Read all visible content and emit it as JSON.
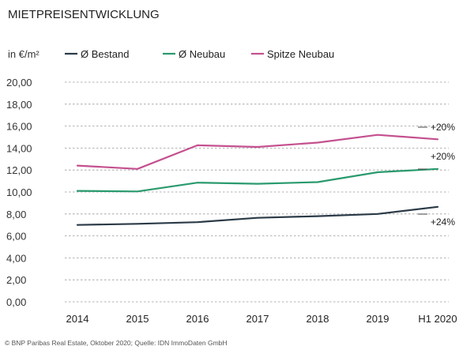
{
  "chart_data": {
    "type": "line",
    "title": "MIETPREISENTWICKLUNG",
    "ylabel": "in €/m²",
    "xlabel": "",
    "categories": [
      "2014",
      "2015",
      "2016",
      "2017",
      "2018",
      "2019",
      "H1 2020"
    ],
    "ylim": [
      0,
      20
    ],
    "yticks": [
      "0,00",
      "2,00",
      "4,00",
      "6,00",
      "8,00",
      "10,00",
      "12,00",
      "14,00",
      "16,00",
      "18,00",
      "20,00"
    ],
    "grid": "horizontal dashed",
    "legend_position": "top",
    "series": [
      {
        "name": "Ø Bestand",
        "color": "#2b3a47",
        "values": [
          7.0,
          7.1,
          7.25,
          7.65,
          7.8,
          8.0,
          8.65
        ],
        "annotation": "+24%"
      },
      {
        "name": "Ø Neubau",
        "color": "#2a9a6e",
        "values": [
          10.1,
          10.05,
          10.85,
          10.75,
          10.9,
          11.8,
          12.1
        ],
        "annotation": "+20%"
      },
      {
        "name": "Spitze Neubau",
        "color": "#c4508f",
        "values": [
          12.4,
          12.1,
          14.25,
          14.1,
          14.5,
          15.2,
          14.8
        ],
        "annotation": "+20%"
      }
    ],
    "source": "© BNP Paribas Real Estate, Oktober 2020; Quelle: IDN ImmoDaten GmbH"
  }
}
